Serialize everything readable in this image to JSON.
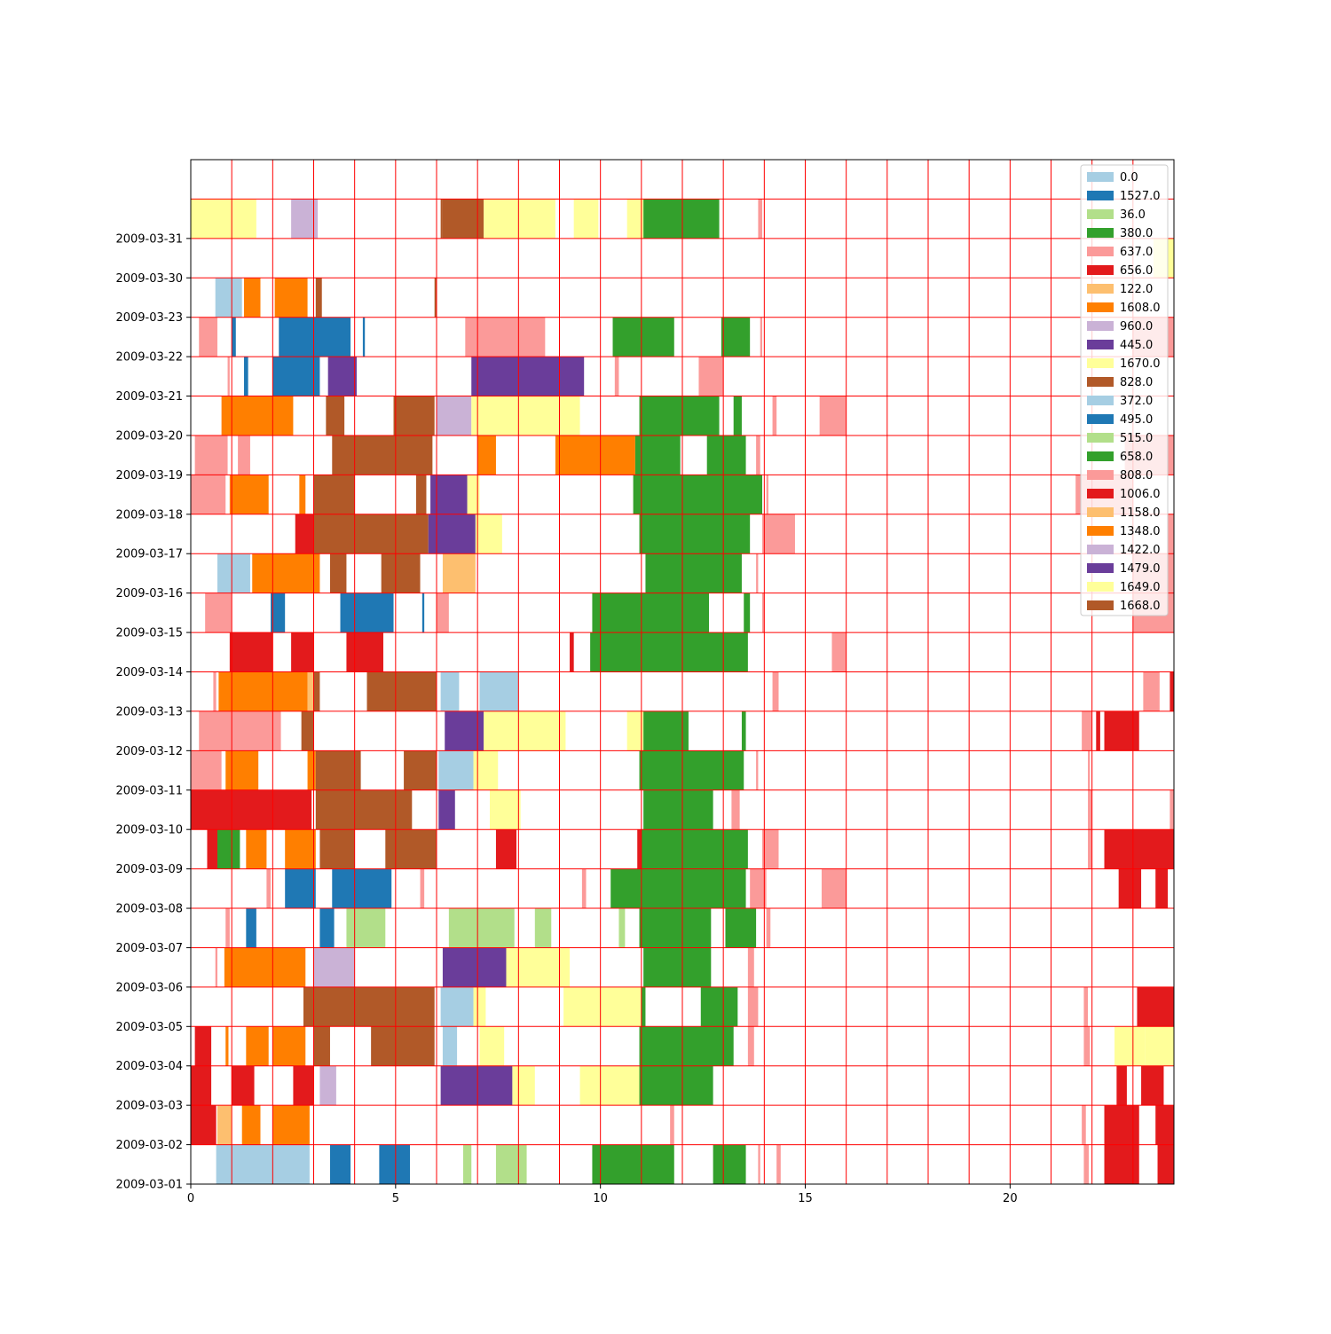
{
  "chart_data": {
    "type": "bar",
    "orientation": "horizontal-timeline",
    "title": "",
    "xlabel": "",
    "ylabel": "",
    "xlim": [
      0,
      24
    ],
    "x_ticks": [
      0,
      5,
      10,
      15,
      20
    ],
    "grid": "on (red, hourly vertical and per-row horizontal)",
    "grid_color": "#ff0000",
    "legend_placement": "upper-right",
    "rows": [
      "2009-03-01",
      "2009-03-02",
      "2009-03-03",
      "2009-03-04",
      "2009-03-05",
      "2009-03-06",
      "2009-03-07",
      "2009-03-08",
      "2009-03-09",
      "2009-03-10",
      "2009-03-11",
      "2009-03-12",
      "2009-03-13",
      "2009-03-14",
      "2009-03-15",
      "2009-03-16",
      "2009-03-17",
      "2009-03-18",
      "2009-03-19",
      "2009-03-20",
      "2009-03-21",
      "2009-03-22",
      "2009-03-23",
      "2009-03-30",
      "2009-03-31",
      ""
    ],
    "series": [
      {
        "name": "0.0",
        "color": "#a6cee3"
      },
      {
        "name": "1527.0",
        "color": "#1f78b4"
      },
      {
        "name": "36.0",
        "color": "#b2df8a"
      },
      {
        "name": "380.0",
        "color": "#33a02c"
      },
      {
        "name": "637.0",
        "color": "#fb9a99"
      },
      {
        "name": "656.0",
        "color": "#e31a1c"
      },
      {
        "name": "122.0",
        "color": "#fdbf6f"
      },
      {
        "name": "1608.0",
        "color": "#ff7f00"
      },
      {
        "name": "960.0",
        "color": "#cab2d6"
      },
      {
        "name": "445.0",
        "color": "#6a3d9a"
      },
      {
        "name": "1670.0",
        "color": "#ffff99"
      },
      {
        "name": "828.0",
        "color": "#b15928"
      },
      {
        "name": "372.0",
        "color": "#a6cee3"
      },
      {
        "name": "495.0",
        "color": "#1f78b4"
      },
      {
        "name": "515.0",
        "color": "#b2df8a"
      },
      {
        "name": "658.0",
        "color": "#33a02c"
      },
      {
        "name": "808.0",
        "color": "#fb9a99"
      },
      {
        "name": "1006.0",
        "color": "#e31a1c"
      },
      {
        "name": "1158.0",
        "color": "#fdbf6f"
      },
      {
        "name": "1348.0",
        "color": "#ff7f00"
      },
      {
        "name": "1422.0",
        "color": "#cab2d6"
      },
      {
        "name": "1479.0",
        "color": "#6a3d9a"
      },
      {
        "name": "1649.0",
        "color": "#ffff99"
      },
      {
        "name": "1668.0",
        "color": "#b15928"
      }
    ],
    "segments_by_row": [
      [
        [
          0.62,
          2.9,
          "#a6cee3"
        ],
        [
          3.4,
          3.9,
          "#1f78b4"
        ],
        [
          4.6,
          5.35,
          "#1f78b4"
        ],
        [
          6.65,
          6.85,
          "#b2df8a"
        ],
        [
          7.45,
          8.2,
          "#b2df8a"
        ],
        [
          9.8,
          11.8,
          "#33a02c"
        ],
        [
          12.75,
          13.55,
          "#33a02c"
        ],
        [
          13.85,
          13.9,
          "#fb9a99"
        ],
        [
          14.3,
          14.4,
          "#fb9a99"
        ],
        [
          21.8,
          21.92,
          "#fb9a99"
        ],
        [
          22.3,
          23.15,
          "#e31a1c"
        ],
        [
          23.6,
          24,
          "#e31a1c"
        ]
      ],
      [
        [
          0,
          0.62,
          "#e31a1c"
        ],
        [
          0.65,
          1.0,
          "#fdbf6f"
        ],
        [
          1.25,
          1.7,
          "#ff7f00"
        ],
        [
          2.0,
          2.9,
          "#ff7f00"
        ],
        [
          11.7,
          11.8,
          "#fb9a99"
        ],
        [
          21.75,
          21.85,
          "#fb9a99"
        ],
        [
          22.3,
          23.15,
          "#e31a1c"
        ],
        [
          23.55,
          24,
          "#e31a1c"
        ]
      ],
      [
        [
          0,
          0.5,
          "#e31a1c"
        ],
        [
          1.0,
          1.55,
          "#e31a1c"
        ],
        [
          2.5,
          3.0,
          "#e31a1c"
        ],
        [
          3.15,
          3.55,
          "#cab2d6"
        ],
        [
          6.1,
          7.85,
          "#6a3d9a"
        ],
        [
          7.85,
          8.4,
          "#ffff99"
        ],
        [
          9.5,
          10.95,
          "#ffff99"
        ],
        [
          10.95,
          12.75,
          "#33a02c"
        ],
        [
          22.6,
          22.85,
          "#e31a1c"
        ],
        [
          23.2,
          23.75,
          "#e31a1c"
        ]
      ],
      [
        [
          0.1,
          0.5,
          "#e31a1c"
        ],
        [
          0.85,
          0.92,
          "#ff7f00"
        ],
        [
          1.35,
          1.9,
          "#ff7f00"
        ],
        [
          2.0,
          2.8,
          "#ff7f00"
        ],
        [
          3.0,
          3.4,
          "#b15928"
        ],
        [
          4.4,
          5.95,
          "#b15928"
        ],
        [
          6.15,
          6.5,
          "#a6cee3"
        ],
        [
          7.05,
          7.65,
          "#ffff99"
        ],
        [
          10.95,
          13.25,
          "#33a02c"
        ],
        [
          13.6,
          13.75,
          "#fb9a99"
        ],
        [
          21.8,
          21.95,
          "#fb9a99"
        ],
        [
          22.55,
          23.3,
          "#ffff99"
        ],
        [
          23.3,
          24,
          "#ffff99"
        ]
      ],
      [
        [
          2.75,
          5.95,
          "#b15928"
        ],
        [
          6.1,
          6.9,
          "#a6cee3"
        ],
        [
          6.9,
          7.2,
          "#ffff99"
        ],
        [
          9.1,
          11.0,
          "#ffff99"
        ],
        [
          11.0,
          11.1,
          "#33a02c"
        ],
        [
          12.45,
          13.35,
          "#33a02c"
        ],
        [
          13.6,
          13.85,
          "#fb9a99"
        ],
        [
          21.8,
          21.9,
          "#fb9a99"
        ],
        [
          23.1,
          24,
          "#e31a1c"
        ]
      ],
      [
        [
          0.6,
          0.65,
          "#fb9a99"
        ],
        [
          0.82,
          2.8,
          "#ff7f00"
        ],
        [
          3.0,
          4.0,
          "#cab2d6"
        ],
        [
          6.15,
          7.7,
          "#6a3d9a"
        ],
        [
          7.7,
          9.25,
          "#ffff99"
        ],
        [
          11.05,
          12.7,
          "#33a02c"
        ],
        [
          13.6,
          13.75,
          "#fb9a99"
        ]
      ],
      [
        [
          0.85,
          0.95,
          "#fb9a99"
        ],
        [
          1.35,
          1.6,
          "#1f78b4"
        ],
        [
          3.15,
          3.5,
          "#1f78b4"
        ],
        [
          3.8,
          4.75,
          "#b2df8a"
        ],
        [
          6.3,
          7.9,
          "#b2df8a"
        ],
        [
          8.4,
          8.8,
          "#b2df8a"
        ],
        [
          10.45,
          10.6,
          "#b2df8a"
        ],
        [
          10.95,
          12.7,
          "#33a02c"
        ],
        [
          13.05,
          13.8,
          "#33a02c"
        ],
        [
          14.05,
          14.15,
          "#fb9a99"
        ]
      ],
      [
        [
          1.85,
          1.95,
          "#fb9a99"
        ],
        [
          2.3,
          3.05,
          "#1f78b4"
        ],
        [
          3.45,
          4.9,
          "#1f78b4"
        ],
        [
          5.6,
          5.7,
          "#fb9a99"
        ],
        [
          9.55,
          9.65,
          "#fb9a99"
        ],
        [
          10.25,
          13.55,
          "#33a02c"
        ],
        [
          13.65,
          14.05,
          "#fb9a99"
        ],
        [
          15.4,
          16.0,
          "#fb9a99"
        ],
        [
          22.65,
          23.2,
          "#e31a1c"
        ],
        [
          23.55,
          23.85,
          "#e31a1c"
        ]
      ],
      [
        [
          0.4,
          0.65,
          "#e31a1c"
        ],
        [
          0.65,
          1.2,
          "#33a02c"
        ],
        [
          1.35,
          1.85,
          "#ff7f00"
        ],
        [
          2.3,
          3.05,
          "#ff7f00"
        ],
        [
          3.15,
          4.0,
          "#b15928"
        ],
        [
          4.75,
          6.0,
          "#b15928"
        ],
        [
          7.45,
          7.95,
          "#e31a1c"
        ],
        [
          10.9,
          11.0,
          "#e31a1c"
        ],
        [
          11.0,
          13.6,
          "#33a02c"
        ],
        [
          13.95,
          14.35,
          "#fb9a99"
        ],
        [
          21.9,
          22.0,
          "#fb9a99"
        ],
        [
          22.3,
          24,
          "#e31a1c"
        ]
      ],
      [
        [
          0,
          2.95,
          "#e31a1c"
        ],
        [
          3.05,
          5.4,
          "#b15928"
        ],
        [
          6.05,
          6.45,
          "#6a3d9a"
        ],
        [
          7.3,
          8.05,
          "#ffff99"
        ],
        [
          11.05,
          12.75,
          "#33a02c"
        ],
        [
          13.2,
          13.4,
          "#fb9a99"
        ],
        [
          21.9,
          22.0,
          "#fb9a99"
        ],
        [
          23.9,
          24,
          "#fb9a99"
        ]
      ],
      [
        [
          0,
          0.75,
          "#fb9a99"
        ],
        [
          0.85,
          1.65,
          "#ff7f00"
        ],
        [
          2.85,
          3.05,
          "#ff7f00"
        ],
        [
          3.05,
          4.15,
          "#b15928"
        ],
        [
          5.2,
          6.0,
          "#b15928"
        ],
        [
          6.05,
          6.9,
          "#a6cee3"
        ],
        [
          6.9,
          7.5,
          "#ffff99"
        ],
        [
          10.95,
          13.5,
          "#33a02c"
        ],
        [
          13.8,
          13.85,
          "#fb9a99"
        ],
        [
          21.9,
          21.95,
          "#fb9a99"
        ]
      ],
      [
        [
          0.2,
          2.2,
          "#fb9a99"
        ],
        [
          2.7,
          3.0,
          "#b15928"
        ],
        [
          6.2,
          7.15,
          "#6a3d9a"
        ],
        [
          7.15,
          9.15,
          "#ffff99"
        ],
        [
          10.65,
          11.05,
          "#ffff99"
        ],
        [
          11.05,
          12.15,
          "#33a02c"
        ],
        [
          13.45,
          13.55,
          "#33a02c"
        ],
        [
          21.75,
          22.0,
          "#fb9a99"
        ],
        [
          22.1,
          22.2,
          "#e31a1c"
        ],
        [
          22.3,
          23.15,
          "#e31a1c"
        ]
      ],
      [
        [
          0.55,
          0.62,
          "#fb9a99"
        ],
        [
          0.68,
          2.85,
          "#ff7f00"
        ],
        [
          2.85,
          3.0,
          "#fdbf6f"
        ],
        [
          3.0,
          3.15,
          "#b15928"
        ],
        [
          4.3,
          6.0,
          "#b15928"
        ],
        [
          6.1,
          6.55,
          "#a6cee3"
        ],
        [
          7.05,
          8.0,
          "#a6cee3"
        ],
        [
          14.2,
          14.35,
          "#fb9a99"
        ],
        [
          23.25,
          23.65,
          "#fb9a99"
        ],
        [
          23.9,
          24,
          "#e31a1c"
        ]
      ],
      [
        [
          0.95,
          2.0,
          "#e31a1c"
        ],
        [
          2.45,
          3.0,
          "#e31a1c"
        ],
        [
          3.8,
          4.7,
          "#e31a1c"
        ],
        [
          9.25,
          9.35,
          "#e31a1c"
        ],
        [
          9.75,
          13.6,
          "#33a02c"
        ],
        [
          15.65,
          16.0,
          "#fb9a99"
        ]
      ],
      [
        [
          0.35,
          1.0,
          "#fb9a99"
        ],
        [
          1.95,
          2.3,
          "#1f78b4"
        ],
        [
          3.65,
          4.95,
          "#1f78b4"
        ],
        [
          5.65,
          5.7,
          "#1f78b4"
        ],
        [
          6.0,
          6.3,
          "#fb9a99"
        ],
        [
          9.8,
          12.65,
          "#33a02c"
        ],
        [
          13.5,
          13.65,
          "#33a02c"
        ],
        [
          13.95,
          14.0,
          "#fb9a99"
        ],
        [
          23.0,
          24,
          "#fb9a99"
        ]
      ],
      [
        [
          0.65,
          1.45,
          "#a6cee3"
        ],
        [
          1.5,
          3.15,
          "#ff7f00"
        ],
        [
          3.4,
          3.8,
          "#b15928"
        ],
        [
          4.65,
          5.6,
          "#b15928"
        ],
        [
          6.15,
          6.95,
          "#fdbf6f"
        ],
        [
          11.1,
          13.45,
          "#33a02c"
        ],
        [
          13.8,
          13.85,
          "#fb9a99"
        ],
        [
          23.0,
          24,
          "#fb9a99"
        ]
      ],
      [
        [
          2.55,
          3.0,
          "#e31a1c"
        ],
        [
          3.0,
          5.8,
          "#b15928"
        ],
        [
          5.8,
          6.95,
          "#6a3d9a"
        ],
        [
          6.95,
          7.6,
          "#ffff99"
        ],
        [
          10.95,
          13.65,
          "#33a02c"
        ],
        [
          13.95,
          14.75,
          "#fb9a99"
        ],
        [
          23.85,
          24,
          "#fb9a99"
        ]
      ],
      [
        [
          0,
          0.85,
          "#fb9a99"
        ],
        [
          0.95,
          1.9,
          "#ff7f00"
        ],
        [
          2.65,
          2.8,
          "#ff7f00"
        ],
        [
          3.0,
          4.0,
          "#b15928"
        ],
        [
          5.5,
          5.75,
          "#b15928"
        ],
        [
          5.85,
          6.75,
          "#6a3d9a"
        ],
        [
          6.75,
          7.05,
          "#ffff99"
        ],
        [
          10.8,
          13.95,
          "#33a02c"
        ],
        [
          14.05,
          14.1,
          "#fb9a99"
        ],
        [
          21.6,
          23.0,
          "#fb9a99"
        ]
      ],
      [
        [
          0.1,
          0.9,
          "#fb9a99"
        ],
        [
          1.15,
          1.45,
          "#fb9a99"
        ],
        [
          3.45,
          5.9,
          "#b15928"
        ],
        [
          7.0,
          7.45,
          "#ff7f00"
        ],
        [
          8.9,
          10.85,
          "#ff7f00"
        ],
        [
          10.85,
          11.95,
          "#33a02c"
        ],
        [
          12.6,
          13.55,
          "#33a02c"
        ],
        [
          13.8,
          13.9,
          "#fb9a99"
        ],
        [
          22.8,
          24,
          "#fb9a99"
        ]
      ],
      [
        [
          0.75,
          2.5,
          "#ff7f00"
        ],
        [
          3.3,
          3.75,
          "#b15928"
        ],
        [
          4.95,
          5.95,
          "#b15928"
        ],
        [
          6.0,
          6.85,
          "#cab2d6"
        ],
        [
          6.85,
          9.5,
          "#ffff99"
        ],
        [
          10.95,
          12.9,
          "#33a02c"
        ],
        [
          13.25,
          13.45,
          "#33a02c"
        ],
        [
          14.2,
          14.3,
          "#fb9a99"
        ],
        [
          15.35,
          16.0,
          "#fb9a99"
        ]
      ],
      [
        [
          0.9,
          0.95,
          "#fb9a99"
        ],
        [
          1.3,
          1.4,
          "#1f78b4"
        ],
        [
          2.0,
          3.15,
          "#1f78b4"
        ],
        [
          3.35,
          4.05,
          "#6a3d9a"
        ],
        [
          6.85,
          9.6,
          "#6a3d9a"
        ],
        [
          10.35,
          10.45,
          "#fb9a99"
        ],
        [
          12.4,
          13.0,
          "#fb9a99"
        ]
      ],
      [
        [
          0.2,
          0.65,
          "#fb9a99"
        ],
        [
          1.0,
          1.1,
          "#1f78b4"
        ],
        [
          2.15,
          3.9,
          "#1f78b4"
        ],
        [
          4.2,
          4.25,
          "#1f78b4"
        ],
        [
          6.7,
          8.65,
          "#fb9a99"
        ],
        [
          10.3,
          11.8,
          "#33a02c"
        ],
        [
          12.95,
          13.65,
          "#33a02c"
        ],
        [
          13.9,
          13.95,
          "#fb9a99"
        ],
        [
          23.0,
          24,
          "#fb9a99"
        ]
      ],
      [
        [
          0.6,
          1.25,
          "#a6cee3"
        ],
        [
          1.3,
          1.7,
          "#ff7f00"
        ],
        [
          2.05,
          2.85,
          "#ff7f00"
        ],
        [
          3.05,
          3.2,
          "#b15928"
        ],
        [
          5.95,
          6.0,
          "#b15928"
        ]
      ],
      [
        [
          23.5,
          24,
          "#ffff99"
        ]
      ],
      [
        [
          0,
          1.6,
          "#ffff99"
        ],
        [
          2.45,
          3.1,
          "#cab2d6"
        ],
        [
          6.1,
          6.15,
          "#b15928"
        ],
        [
          6.15,
          7.15,
          "#b15928"
        ],
        [
          7.15,
          8.9,
          "#ffff99"
        ],
        [
          9.35,
          9.95,
          "#ffff99"
        ],
        [
          10.65,
          11.05,
          "#ffff99"
        ],
        [
          11.05,
          12.9,
          "#33a02c"
        ],
        [
          13.85,
          13.95,
          "#fb9a99"
        ]
      ]
    ]
  }
}
